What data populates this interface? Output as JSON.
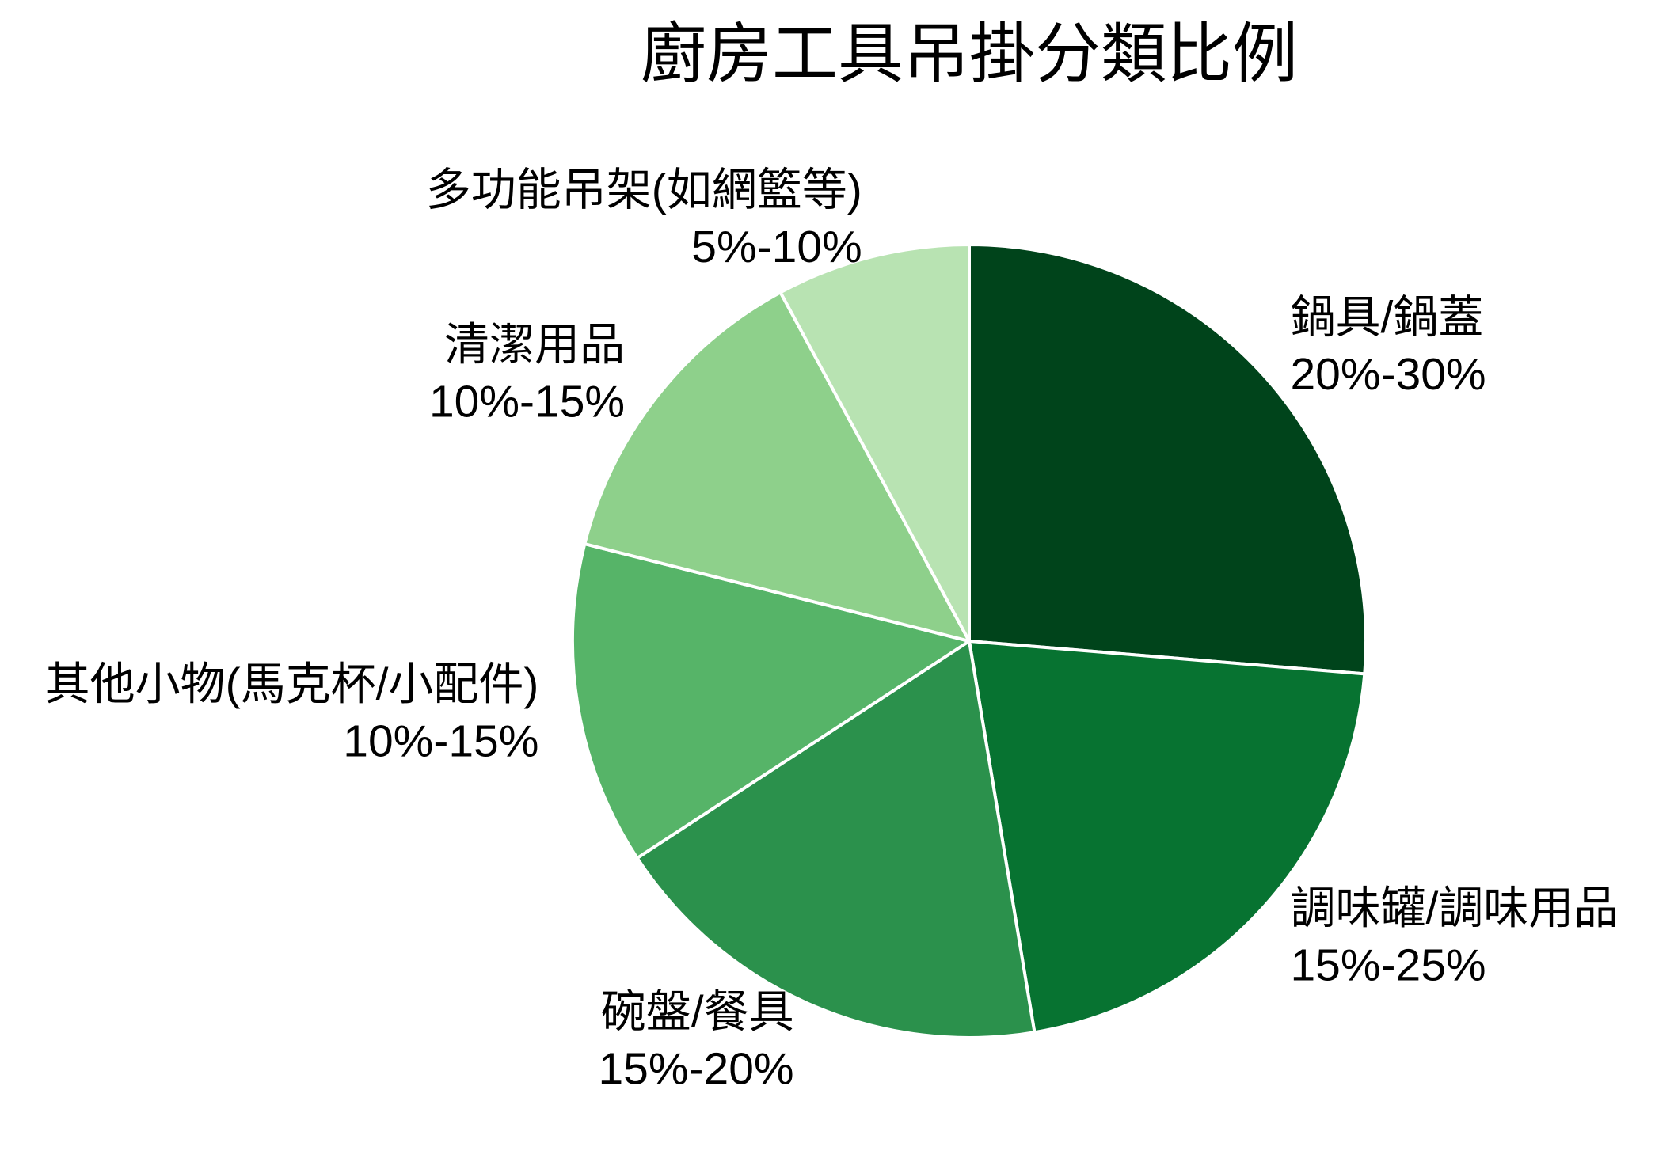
{
  "chart_data": {
    "type": "pie",
    "title": "廚房工具吊掛分類比例",
    "categories": [
      "鍋具/鍋蓋",
      "調味罐/調味用品",
      "碗盤/餐具",
      "其他小物(馬克杯/小配件)",
      "清潔用品",
      "多功能吊架(如網籃等)"
    ],
    "range_labels": [
      "20%-30%",
      "15%-25%",
      "15%-20%",
      "10%-15%",
      "10%-15%",
      "5%-10%"
    ],
    "values": [
      25,
      20,
      17.5,
      12.5,
      12.5,
      7.5
    ],
    "colors": [
      "#00441b",
      "#077331",
      "#2b914c",
      "#56b468",
      "#8ed08b",
      "#b8e3b2"
    ]
  }
}
